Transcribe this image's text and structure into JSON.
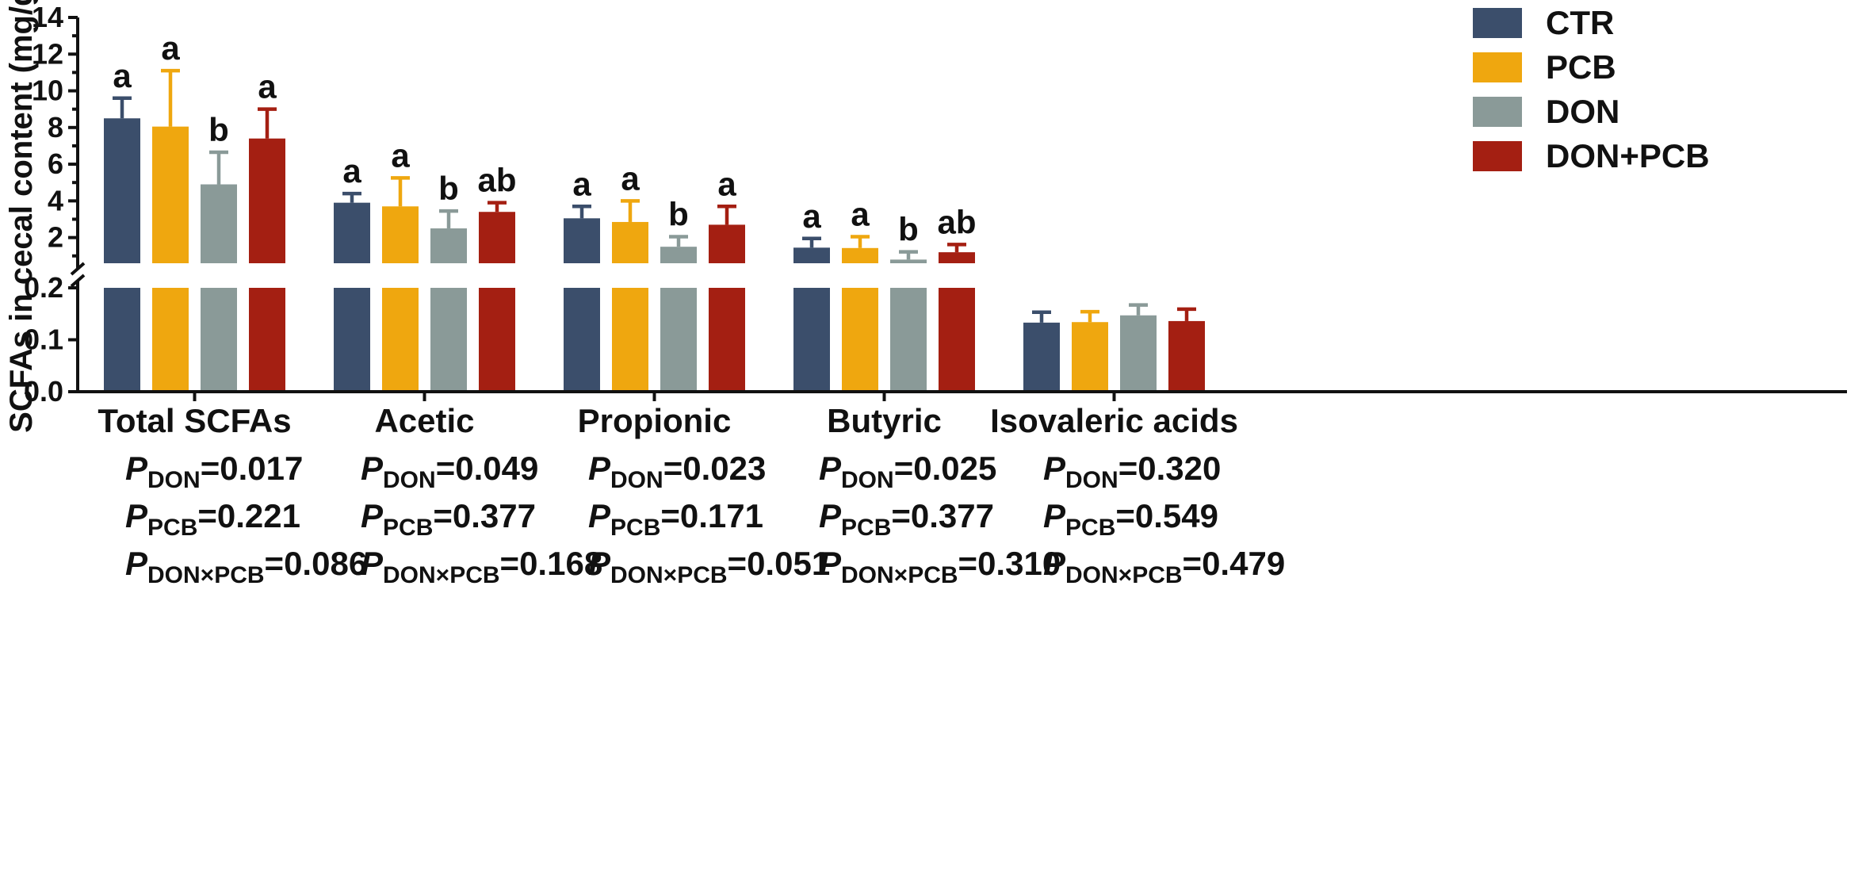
{
  "chart_data": {
    "type": "bar",
    "ylabel": "SCFAs in cecal content (mg/g)",
    "broken_axis": {
      "lower": {
        "ylim": [
          0,
          0.2
        ],
        "ticks": [
          "0.0",
          "0.1",
          "0.2"
        ]
      },
      "upper": {
        "ylim": [
          0.6,
          14
        ],
        "ticks": [
          "2",
          "4",
          "6",
          "8",
          "10",
          "12",
          "14"
        ]
      }
    },
    "categories": [
      "Total SCFAs",
      "Acetic",
      "Propionic",
      "Butyric",
      "Isovaleric acids"
    ],
    "series": [
      {
        "name": "CTR",
        "color": "#3b4e6b",
        "values": [
          8.5,
          3.9,
          3.05,
          1.45,
          0.133
        ],
        "errors": [
          1.1,
          0.5,
          0.65,
          0.5,
          0.02
        ],
        "letters": [
          "a",
          "a",
          "a",
          "a",
          ""
        ]
      },
      {
        "name": "PCB",
        "color": "#efa70f",
        "values": [
          8.05,
          3.7,
          2.85,
          1.43,
          0.134
        ],
        "errors": [
          3.05,
          1.55,
          1.15,
          0.62,
          0.02
        ],
        "letters": [
          "a",
          "a",
          "a",
          "a",
          ""
        ]
      },
      {
        "name": "DON",
        "color": "#8a9a98",
        "values": [
          4.9,
          2.5,
          1.5,
          0.8,
          0.147
        ],
        "errors": [
          1.75,
          0.95,
          0.55,
          0.42,
          0.02
        ],
        "letters": [
          "b",
          "b",
          "b",
          "b",
          ""
        ]
      },
      {
        "name": "DON+PCB",
        "color": "#a41f12",
        "values": [
          7.4,
          3.4,
          2.7,
          1.2,
          0.136
        ],
        "errors": [
          1.6,
          0.5,
          1.0,
          0.42,
          0.023
        ],
        "letters": [
          "a",
          "ab",
          "a",
          "ab",
          ""
        ]
      }
    ],
    "legend_position": "top-right",
    "annotations": [
      {
        "category": "Total SCFAs",
        "don": "=0.017",
        "pcb": "=0.221",
        "inter": "=0.086"
      },
      {
        "category": "Acetic",
        "don": "=0.049",
        "pcb": "=0.377",
        "inter": "=0.168"
      },
      {
        "category": "Propionic",
        "don": "=0.023",
        "pcb": "=0.171",
        "inter": "=0.051"
      },
      {
        "category": "Butyric",
        "don": "=0.025",
        "pcb": "=0.377",
        "inter": "=0.310"
      },
      {
        "category": "Isovaleric acids",
        "don": "=0.320",
        "pcb": "=0.549",
        "inter": "=0.479"
      }
    ],
    "p_label": {
      "p": "P",
      "don": "DON",
      "pcb": "PCB",
      "inter": "DON×PCB"
    }
  }
}
